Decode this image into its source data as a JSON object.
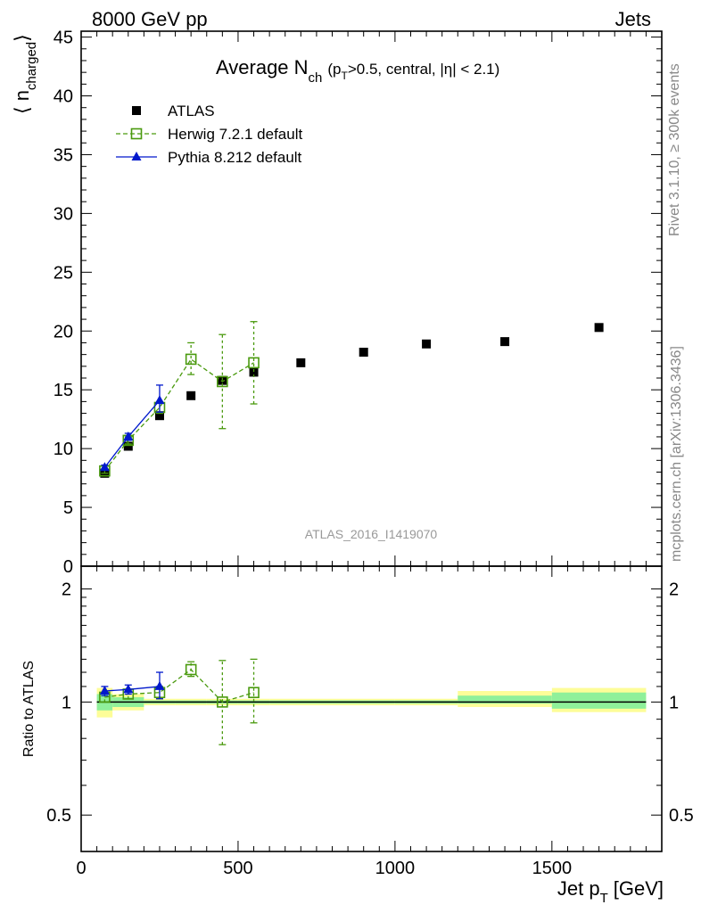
{
  "header": {
    "left": "8000 GeV pp",
    "right": "Jets"
  },
  "side_labels": {
    "rivet": "Rivet 3.1.10, ≥ 300k events",
    "mcplots": "mcplots.cern.ch [arXiv:1306.3436]"
  },
  "chart_data": [
    {
      "type": "scatter",
      "panel": "main",
      "title": "Average N",
      "title_sub": "ch",
      "title_detail_open": "(p",
      "title_detail_sub": "T",
      "title_detail_rest": ">0.5, central, |η| < 2.1)",
      "ylabel": "⟨ n",
      "ylabel_sub": "charged",
      "ylabel_close": "⟩",
      "analysis": "ATLAS_2016_I1419070",
      "ylim": [
        0,
        45.5
      ],
      "xlim": [
        0,
        1850
      ],
      "yticks": [
        0,
        5,
        10,
        15,
        20,
        25,
        30,
        35,
        40,
        45
      ],
      "legend_position": "top-left",
      "series": [
        {
          "name": "ATLAS",
          "color": "#000000",
          "marker": "filled-square",
          "x": [
            75,
            150,
            250,
            350,
            450,
            550,
            700,
            900,
            1100,
            1350,
            1650
          ],
          "y": [
            7.9,
            10.2,
            12.8,
            14.5,
            15.8,
            16.5,
            17.3,
            18.2,
            18.9,
            19.1,
            20.3
          ]
        },
        {
          "name": "Herwig 7.2.1 default",
          "color": "#4a9a0e",
          "marker": "open-square",
          "line": "dashed",
          "x": [
            75,
            150,
            250,
            350,
            450,
            550
          ],
          "y": [
            8.1,
            10.7,
            13.5,
            17.6,
            15.7,
            17.3
          ],
          "err_low": [
            0.2,
            0.3,
            0.5,
            1.3,
            4.0,
            3.5
          ],
          "err_high": [
            0.2,
            0.3,
            0.5,
            1.4,
            4.0,
            3.5
          ]
        },
        {
          "name": "Pythia 8.212 default",
          "color": "#0018cc",
          "marker": "filled-triangle",
          "line": "solid",
          "x": [
            75,
            150,
            250
          ],
          "y": [
            8.4,
            11.0,
            14.1
          ],
          "err_low": [
            0.2,
            0.3,
            1.0
          ],
          "err_high": [
            0.2,
            0.3,
            1.3
          ]
        }
      ]
    },
    {
      "type": "scatter",
      "panel": "ratio",
      "ylabel": "Ratio to ATLAS",
      "xlabel": "Jet p",
      "xlabel_sub": "T",
      "xlabel_unit": "[GeV]",
      "scale": "log",
      "ylim": [
        0.4,
        2.3
      ],
      "xlim": [
        0,
        1850
      ],
      "yticks": [
        0.5,
        1,
        2
      ],
      "yticklabels": [
        "0.5",
        "1",
        "2"
      ],
      "xticks": [
        0,
        500,
        1000,
        1500
      ],
      "xticklabels": [
        "0",
        "500",
        "1000",
        "1500"
      ],
      "bands": {
        "edges": [
          50,
          100,
          200,
          300,
          400,
          500,
          600,
          800,
          1000,
          1200,
          1500,
          1800
        ],
        "stat_low": [
          0.95,
          0.97,
          0.99,
          0.99,
          0.99,
          0.99,
          0.99,
          0.99,
          0.99,
          0.99,
          0.96
        ],
        "stat_high": [
          1.05,
          1.03,
          1.01,
          1.01,
          1.01,
          1.01,
          1.01,
          1.01,
          1.01,
          1.04,
          1.06
        ],
        "total_low": [
          0.91,
          0.95,
          0.98,
          0.98,
          0.98,
          0.98,
          0.98,
          0.98,
          0.98,
          0.97,
          0.94
        ],
        "total_high": [
          1.09,
          1.05,
          1.02,
          1.02,
          1.02,
          1.02,
          1.02,
          1.02,
          1.02,
          1.07,
          1.09
        ],
        "stat_color": "#8ff09a",
        "total_color": "#fdfd98"
      },
      "series": [
        {
          "name": "Herwig 7.2.1 default",
          "color": "#4a9a0e",
          "marker": "open-square",
          "line": "dashed",
          "x": [
            75,
            150,
            250,
            350,
            450,
            550
          ],
          "y": [
            1.03,
            1.05,
            1.06,
            1.22,
            1.0,
            1.06
          ],
          "err_low": [
            0.03,
            0.03,
            0.04,
            0.05,
            0.23,
            0.18
          ],
          "err_high": [
            0.03,
            0.03,
            0.04,
            0.06,
            0.29,
            0.24
          ]
        },
        {
          "name": "Pythia 8.212 default",
          "color": "#0018cc",
          "marker": "filled-triangle",
          "line": "solid",
          "x": [
            75,
            150,
            250
          ],
          "y": [
            1.07,
            1.08,
            1.1
          ],
          "err_low": [
            0.03,
            0.03,
            0.08
          ],
          "err_high": [
            0.03,
            0.03,
            0.1
          ]
        }
      ]
    }
  ]
}
